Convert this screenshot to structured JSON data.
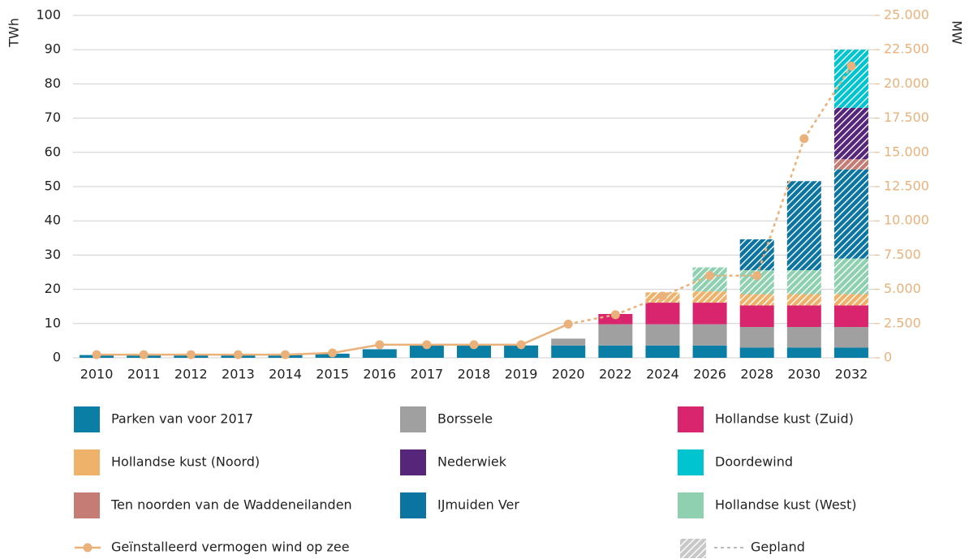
{
  "chart_data": {
    "type": "bar",
    "categories": [
      "2010",
      "2011",
      "2012",
      "2013",
      "2014",
      "2015",
      "2016",
      "2017",
      "2018",
      "2019",
      "2020",
      "2022",
      "2024",
      "2026",
      "2028",
      "2030",
      "2032"
    ],
    "ylabel": "TWh",
    "y2label": "MW",
    "ylim": [
      0,
      100
    ],
    "yticks": [
      0,
      10,
      20,
      30,
      40,
      50,
      60,
      70,
      80,
      90,
      100
    ],
    "y2lim": [
      0,
      25000
    ],
    "y2ticks": [
      0,
      {
        "value": 2500,
        "label": "2.500"
      },
      {
        "value": 5000,
        "label": "5.000"
      },
      {
        "value": 7500,
        "label": "7.500"
      },
      {
        "value": 10000,
        "label": "10.000"
      },
      {
        "value": 12500,
        "label": "12.500"
      },
      {
        "value": 15000,
        "label": "15.000"
      },
      {
        "value": 17500,
        "label": "17.500"
      },
      {
        "value": 20000,
        "label": "20.000"
      },
      {
        "value": 22500,
        "label": "22.500"
      },
      {
        "value": 25000,
        "label": "25.000"
      }
    ],
    "grid": true,
    "stacked": true,
    "series": [
      {
        "name": "Parken van voor 2017",
        "color": "#0a7ea4",
        "hatched": false,
        "values": [
          0.8,
          0.8,
          0.8,
          0.8,
          0.8,
          1.2,
          2.5,
          3.6,
          3.6,
          3.6,
          3.6,
          3.6,
          3.6,
          3.6,
          3,
          3,
          3
        ]
      },
      {
        "name": "Borssele",
        "color": "#a0a0a0",
        "hatched": false,
        "values": [
          0,
          0,
          0,
          0,
          0,
          0,
          0,
          0,
          0,
          0,
          2,
          6.2,
          6.2,
          6.2,
          6,
          6,
          6
        ]
      },
      {
        "name": "Hollandse kust (Zuid)",
        "color": "#d9246e",
        "hatched": false,
        "values": [
          0,
          0,
          0,
          0,
          0,
          0,
          0,
          0,
          0,
          0,
          0,
          3,
          6.3,
          6.3,
          6.3,
          6.3,
          6.3
        ]
      },
      {
        "name": "Hollandse kust (Noord)",
        "color": "#eeb26b",
        "hatched": true,
        "values": [
          0,
          0,
          0,
          0,
          0,
          0,
          0,
          0,
          0,
          0,
          0,
          0,
          3,
          3.3,
          3.3,
          3.3,
          3.3
        ]
      },
      {
        "name": "Hollandse kust (West)",
        "color": "#8fd0b0",
        "hatched": true,
        "values": [
          0,
          0,
          0,
          0,
          0,
          0,
          0,
          0,
          0,
          0,
          0,
          0,
          0,
          7,
          7,
          7,
          10.4
        ]
      },
      {
        "name": "IJmuiden Ver",
        "color": "#0b74a0",
        "hatched": true,
        "values": [
          0,
          0,
          0,
          0,
          0,
          0,
          0,
          0,
          0,
          0,
          0,
          0,
          0,
          0,
          9,
          26,
          26
        ]
      },
      {
        "name": "Ten noorden van de Waddeneilanden",
        "color": "#c47c75",
        "hatched": true,
        "values": [
          0,
          0,
          0,
          0,
          0,
          0,
          0,
          0,
          0,
          0,
          0,
          0,
          0,
          0,
          0,
          0,
          3
        ]
      },
      {
        "name": "Nederwiek",
        "color": "#56267a",
        "hatched": true,
        "values": [
          0,
          0,
          0,
          0,
          0,
          0,
          0,
          0,
          0,
          0,
          0,
          0,
          0,
          0,
          0,
          0,
          15
        ]
      },
      {
        "name": "Doordewind",
        "color": "#00c4cf",
        "hatched": true,
        "values": [
          0,
          0,
          0,
          0,
          0,
          0,
          0,
          0,
          0,
          0,
          0,
          0,
          0,
          0,
          0,
          0,
          17
        ]
      }
    ],
    "line": {
      "name": "Geïnstalleerd vermogen wind op zee",
      "color": "#eab17a",
      "axis": "y2",
      "dashed_from": "2020",
      "values": [
        228,
        228,
        228,
        228,
        228,
        357,
        957,
        957,
        957,
        957,
        2460,
        3150,
        4500,
        6000,
        6000,
        16000,
        21300
      ]
    },
    "planned_label": "Gepland"
  }
}
